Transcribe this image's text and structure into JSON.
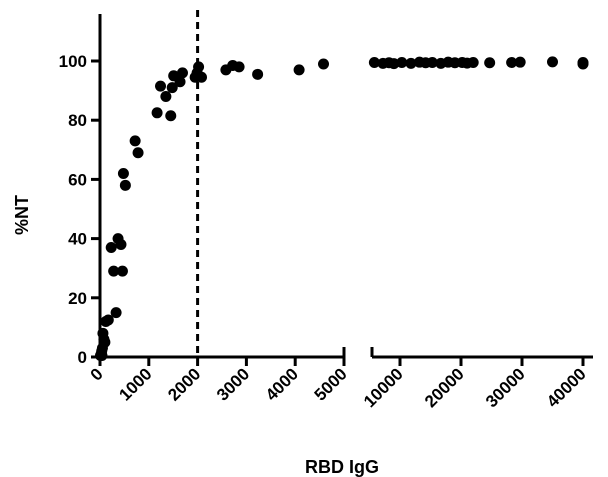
{
  "chart_data": {
    "type": "scatter",
    "title": "",
    "xlabel": "RBD IgG",
    "ylabel": "%NT",
    "ylim": [
      0,
      115
    ],
    "y_ticks": [
      "0",
      "20",
      "40",
      "60",
      "80",
      "100"
    ],
    "x_axis_broken": true,
    "x_segments": [
      {
        "range": [
          0,
          5000
        ],
        "ticks": [
          "0",
          "1000",
          "2000",
          "3000",
          "4000",
          "5000"
        ]
      },
      {
        "range": [
          5000,
          40000
        ],
        "ticks": [
          "10000",
          "20000",
          "30000",
          "40000"
        ]
      }
    ],
    "reference_line_x": 2000,
    "grid": false,
    "legend": "none",
    "points": [
      [
        10,
        0.5
      ],
      [
        25,
        1
      ],
      [
        35,
        2
      ],
      [
        50,
        3
      ],
      [
        40,
        0.5
      ],
      [
        60,
        8
      ],
      [
        80,
        6
      ],
      [
        100,
        5
      ],
      [
        120,
        12
      ],
      [
        170,
        12.5
      ],
      [
        230,
        37
      ],
      [
        280,
        29
      ],
      [
        330,
        15
      ],
      [
        370,
        40
      ],
      [
        430,
        38
      ],
      [
        460,
        29
      ],
      [
        480,
        62
      ],
      [
        520,
        58
      ],
      [
        720,
        73
      ],
      [
        780,
        69
      ],
      [
        1170,
        82.5
      ],
      [
        1240,
        91.5
      ],
      [
        1350,
        88
      ],
      [
        1450,
        81.5
      ],
      [
        1480,
        91
      ],
      [
        1510,
        95
      ],
      [
        1640,
        93
      ],
      [
        1690,
        96
      ],
      [
        1950,
        94.5
      ],
      [
        1990,
        96
      ],
      [
        2020,
        98
      ],
      [
        2080,
        94.5
      ],
      [
        2580,
        97
      ],
      [
        2720,
        98.5
      ],
      [
        2850,
        98
      ],
      [
        3230,
        95.5
      ],
      [
        4080,
        97
      ],
      [
        4580,
        99
      ],
      [
        5800,
        99.5
      ],
      [
        7200,
        99.2
      ],
      [
        8200,
        99.4
      ],
      [
        9000,
        99.1
      ],
      [
        10300,
        99.5
      ],
      [
        11800,
        99.2
      ],
      [
        13200,
        99.6
      ],
      [
        14200,
        99.4
      ],
      [
        15300,
        99.5
      ],
      [
        16700,
        99.2
      ],
      [
        17900,
        99.6
      ],
      [
        19000,
        99.4
      ],
      [
        20200,
        99.5
      ],
      [
        21000,
        99.3
      ],
      [
        22000,
        99.5
      ],
      [
        24700,
        99.4
      ],
      [
        28300,
        99.5
      ],
      [
        29700,
        99.6
      ],
      [
        35000,
        99.7
      ],
      [
        40000,
        99.5
      ],
      [
        40000,
        99.0
      ]
    ]
  }
}
